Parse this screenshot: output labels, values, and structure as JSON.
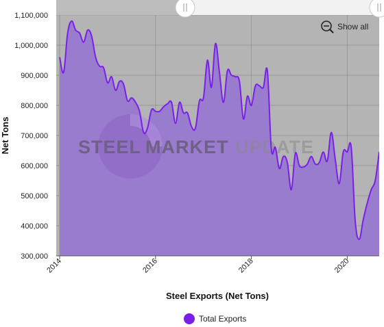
{
  "chart_data": {
    "type": "area",
    "title": "Steel Exports (Net Tons)",
    "ylabel": "Net Tons",
    "ylim": [
      300000,
      1100000
    ],
    "yticks": [
      300000,
      400000,
      500000,
      600000,
      700000,
      800000,
      900000,
      1000000,
      1100000
    ],
    "ytick_labels": [
      "300,000",
      "400,000",
      "500,000",
      "600,000",
      "700,000",
      "800,000",
      "900,000",
      "1,000,000",
      "1,100,000"
    ],
    "xticks": [
      "2014",
      "2016",
      "2018",
      "2020"
    ],
    "xlim": [
      "2014-01",
      "2020-09"
    ],
    "grid": true,
    "legend": "bottom-center",
    "series": [
      {
        "name": "Total Exports",
        "color": "#7a1fe8",
        "x": [
          "2014-01",
          "2014-02",
          "2014-03",
          "2014-04",
          "2014-05",
          "2014-06",
          "2014-07",
          "2014-08",
          "2014-09",
          "2014-10",
          "2014-11",
          "2014-12",
          "2015-01",
          "2015-02",
          "2015-03",
          "2015-04",
          "2015-05",
          "2015-06",
          "2015-07",
          "2015-08",
          "2015-09",
          "2015-10",
          "2015-11",
          "2015-12",
          "2016-01",
          "2016-02",
          "2016-03",
          "2016-04",
          "2016-05",
          "2016-06",
          "2016-07",
          "2016-08",
          "2016-09",
          "2016-10",
          "2016-11",
          "2016-12",
          "2017-01",
          "2017-02",
          "2017-03",
          "2017-04",
          "2017-05",
          "2017-06",
          "2017-07",
          "2017-08",
          "2017-09",
          "2017-10",
          "2017-11",
          "2017-12",
          "2018-01",
          "2018-02",
          "2018-03",
          "2018-04",
          "2018-05",
          "2018-06",
          "2018-07",
          "2018-08",
          "2018-09",
          "2018-10",
          "2018-11",
          "2018-12",
          "2019-01",
          "2019-02",
          "2019-03",
          "2019-04",
          "2019-05",
          "2019-06",
          "2019-07",
          "2019-08",
          "2019-09",
          "2019-10",
          "2019-11",
          "2019-12",
          "2020-01",
          "2020-02",
          "2020-03",
          "2020-04",
          "2020-05",
          "2020-06",
          "2020-07",
          "2020-08",
          "2020-09"
        ],
        "values": [
          960000,
          910000,
          1040000,
          1080000,
          1050000,
          1040000,
          1010000,
          1050000,
          1030000,
          960000,
          930000,
          925000,
          875000,
          895000,
          850000,
          880000,
          870000,
          815000,
          825000,
          810000,
          780000,
          710000,
          725000,
          785000,
          780000,
          780000,
          795000,
          805000,
          810000,
          740000,
          810000,
          775000,
          775000,
          730000,
          725000,
          815000,
          825000,
          950000,
          860000,
          1005000,
          910000,
          810000,
          915000,
          900000,
          895000,
          880000,
          755000,
          830000,
          800000,
          865000,
          865000,
          860000,
          915000,
          655000,
          660000,
          590000,
          630000,
          610000,
          520000,
          640000,
          600000,
          595000,
          605000,
          630000,
          605000,
          610000,
          645000,
          615000,
          710000,
          620000,
          540000,
          645000,
          645000,
          660000,
          415000,
          355000,
          420000,
          475000,
          520000,
          550000,
          645000
        ]
      }
    ]
  },
  "ui": {
    "show_all_label": "Show all",
    "watermark_word1": "STEEL",
    "watermark_word2": "MARKET",
    "watermark_word3": "UPDATE"
  }
}
